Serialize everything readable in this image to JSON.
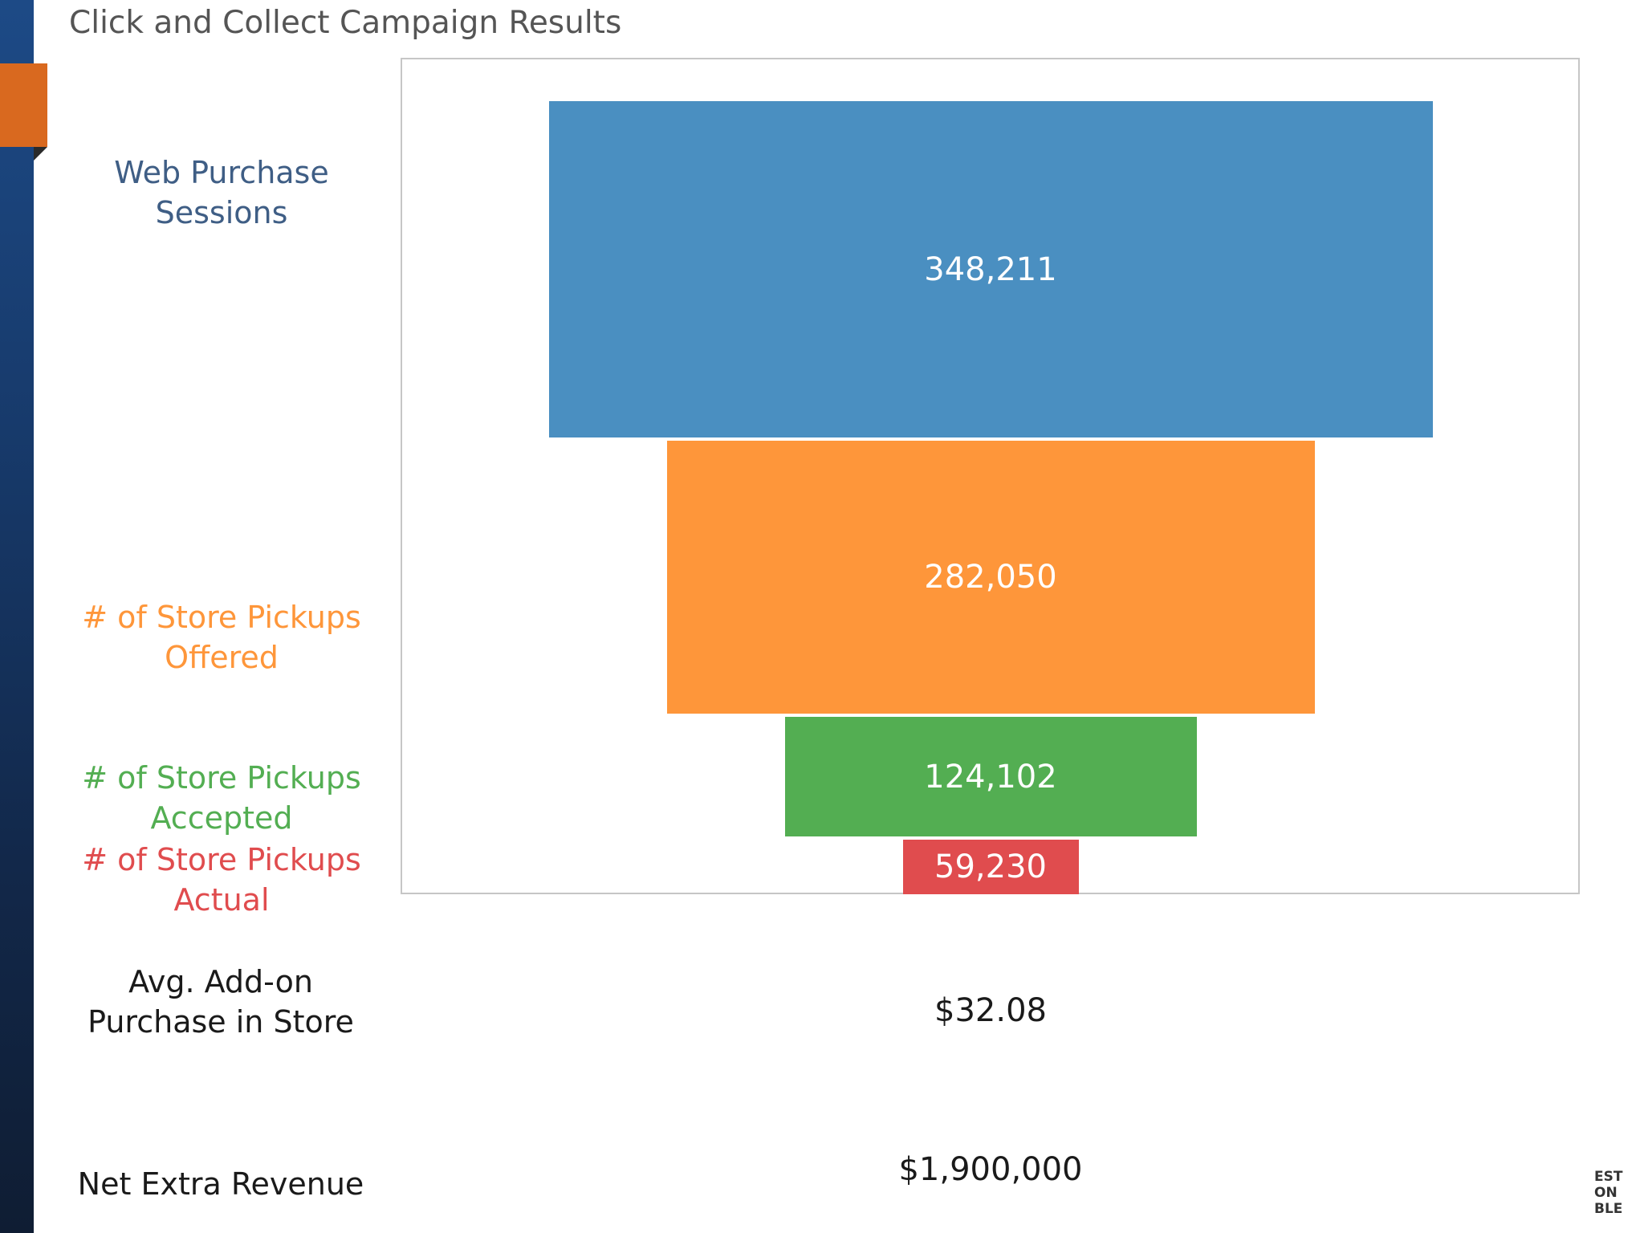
{
  "chart_data": {
    "type": "bar",
    "orientation": "funnel",
    "title": "Click and Collect Campaign Results",
    "categories": [
      "Web Purchase Sessions",
      "# of Store Pickups Offered",
      "# of Store Pickups Accepted",
      "# of Store Pickups Actual"
    ],
    "values": [
      348211,
      282050,
      124102,
      59230
    ],
    "value_labels": [
      "348,211",
      "282,050",
      "124,102",
      "59,230"
    ],
    "colors": [
      "#4a8fc1",
      "#fe963a",
      "#53ae52",
      "#e04c4e"
    ],
    "grid": false,
    "legend": "none"
  },
  "metrics": [
    {
      "label": "Avg. Add-on Purchase in Store",
      "value": "$32.08"
    },
    {
      "label": "Net Extra Revenue",
      "value": "$1,900,000"
    }
  ],
  "corner_logo_lines": [
    "EST",
    "ON",
    "BLE"
  ]
}
